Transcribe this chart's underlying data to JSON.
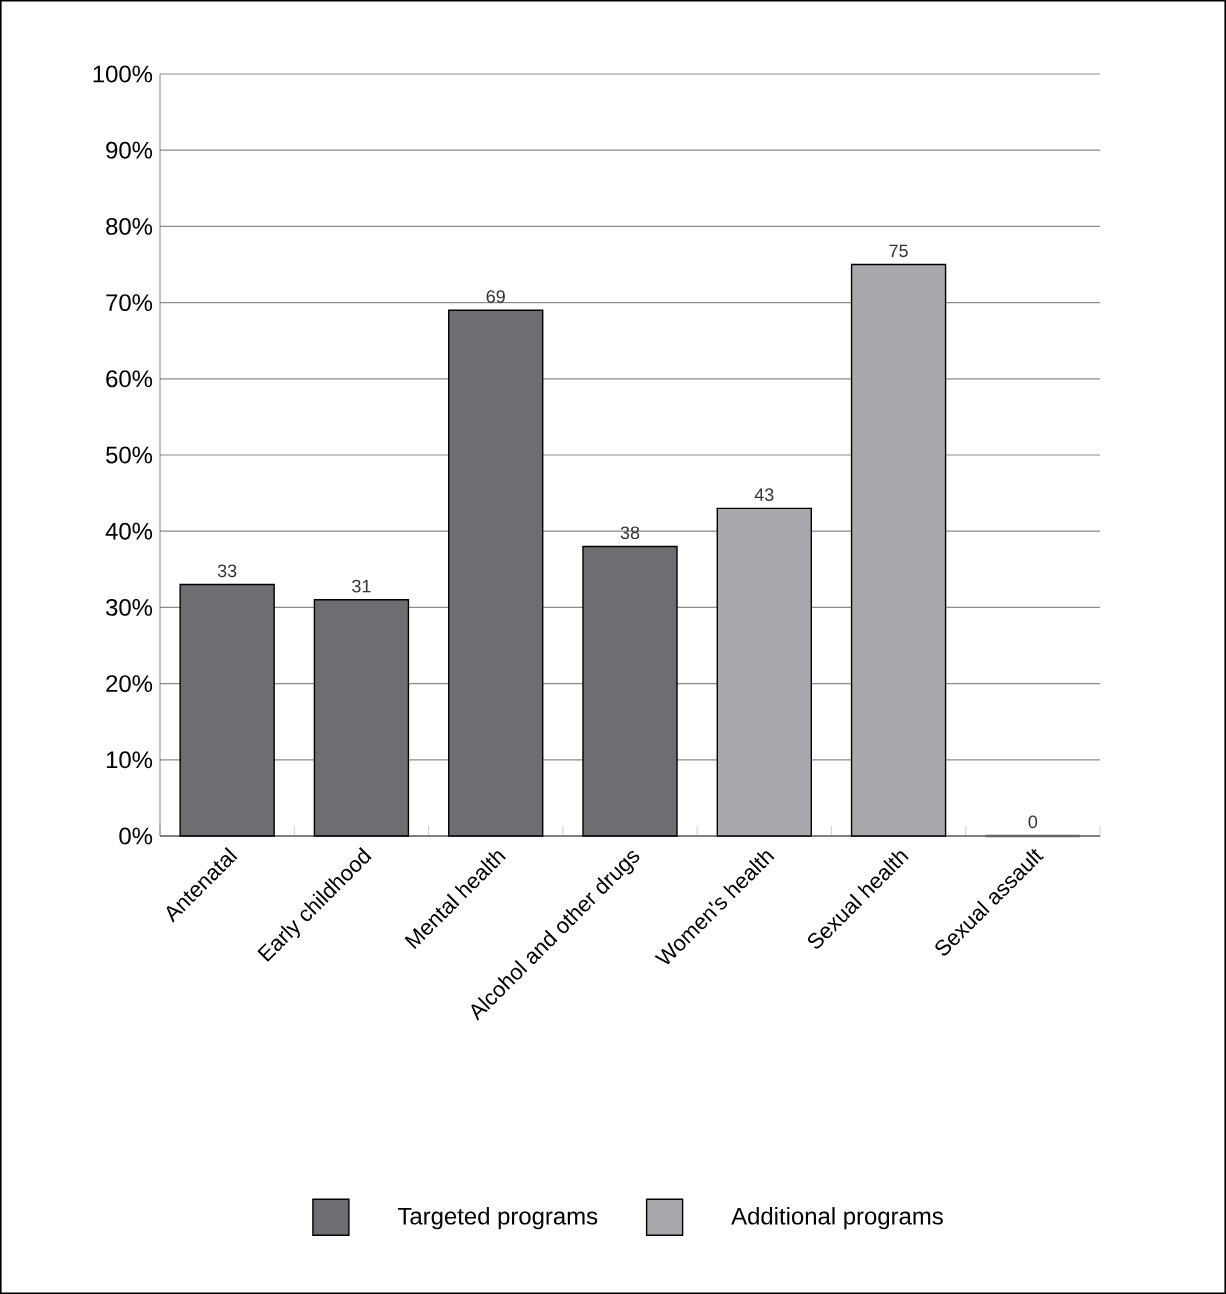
{
  "chart_data": {
    "type": "bar",
    "categories": [
      "Antenatal",
      "Early childhood",
      "Mental health",
      "Alcohol and other drugs",
      "Women's health",
      "Sexual health",
      "Sexual assault"
    ],
    "series": [
      {
        "name": "Targeted programs",
        "color": "#6d6e71",
        "values": [
          33,
          31,
          69,
          38,
          null,
          null,
          null
        ]
      },
      {
        "name": "Additional programs",
        "color": "#a7a9ac",
        "values": [
          null,
          null,
          null,
          null,
          43,
          75,
          0
        ]
      }
    ],
    "ylim": [
      0,
      100
    ],
    "yticks": [
      {
        "value": 0,
        "label": "0%"
      },
      {
        "value": 10,
        "label": "10%"
      },
      {
        "value": 20,
        "label": "20%"
      },
      {
        "value": 30,
        "label": "30%"
      },
      {
        "value": 40,
        "label": "40%"
      },
      {
        "value": 50,
        "label": "50%"
      },
      {
        "value": 60,
        "label": "60%"
      },
      {
        "value": 70,
        "label": "70%"
      },
      {
        "value": 80,
        "label": "80%"
      },
      {
        "value": 90,
        "label": "90%"
      },
      {
        "value": 100,
        "label": "100%"
      }
    ],
    "grid": "y",
    "legend": "bottom",
    "data_labels": true
  }
}
